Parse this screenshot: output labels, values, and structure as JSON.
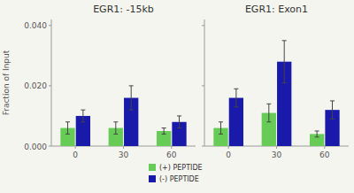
{
  "chart_data": [
    {
      "type": "bar",
      "title": "EGR1: -15kb",
      "y_label": "Fraction of Input",
      "categories": [
        "0",
        "30",
        "60"
      ],
      "series": [
        {
          "name": "(+) PEPTIDE",
          "color": "#66cc55",
          "values": [
            0.006,
            0.006,
            0.005
          ],
          "errors": [
            0.002,
            0.002,
            0.001
          ]
        },
        {
          "name": "(-) PEPTIDE",
          "color": "#1a1aaa",
          "values": [
            0.01,
            0.016,
            0.008
          ],
          "errors": [
            0.002,
            0.004,
            0.002
          ]
        }
      ],
      "ylim": [
        0,
        0.042
      ],
      "yticks": [
        {
          "value": 0,
          "label": "0.000"
        },
        {
          "value": 0.02,
          "label": "0.020"
        },
        {
          "value": 0.04,
          "label": "0.040"
        }
      ],
      "grid": false,
      "legend": "bottom"
    },
    {
      "type": "bar",
      "title": "EGR1: Exon1",
      "categories": [
        "0",
        "30",
        "60"
      ],
      "series": [
        {
          "color": "#66cc55",
          "values": [
            0.006,
            0.011,
            0.004
          ],
          "errors": [
            0.002,
            0.003,
            0.001
          ]
        },
        {
          "color": "#1a1aaa",
          "values": [
            0.016,
            0.028,
            0.012
          ],
          "errors": [
            0.003,
            0.007,
            0.003
          ]
        }
      ],
      "ylim": [
        0,
        0.042
      ],
      "yticks": [
        0,
        0.02,
        0.04
      ],
      "grid": false,
      "tick_labels": "x"
    }
  ]
}
